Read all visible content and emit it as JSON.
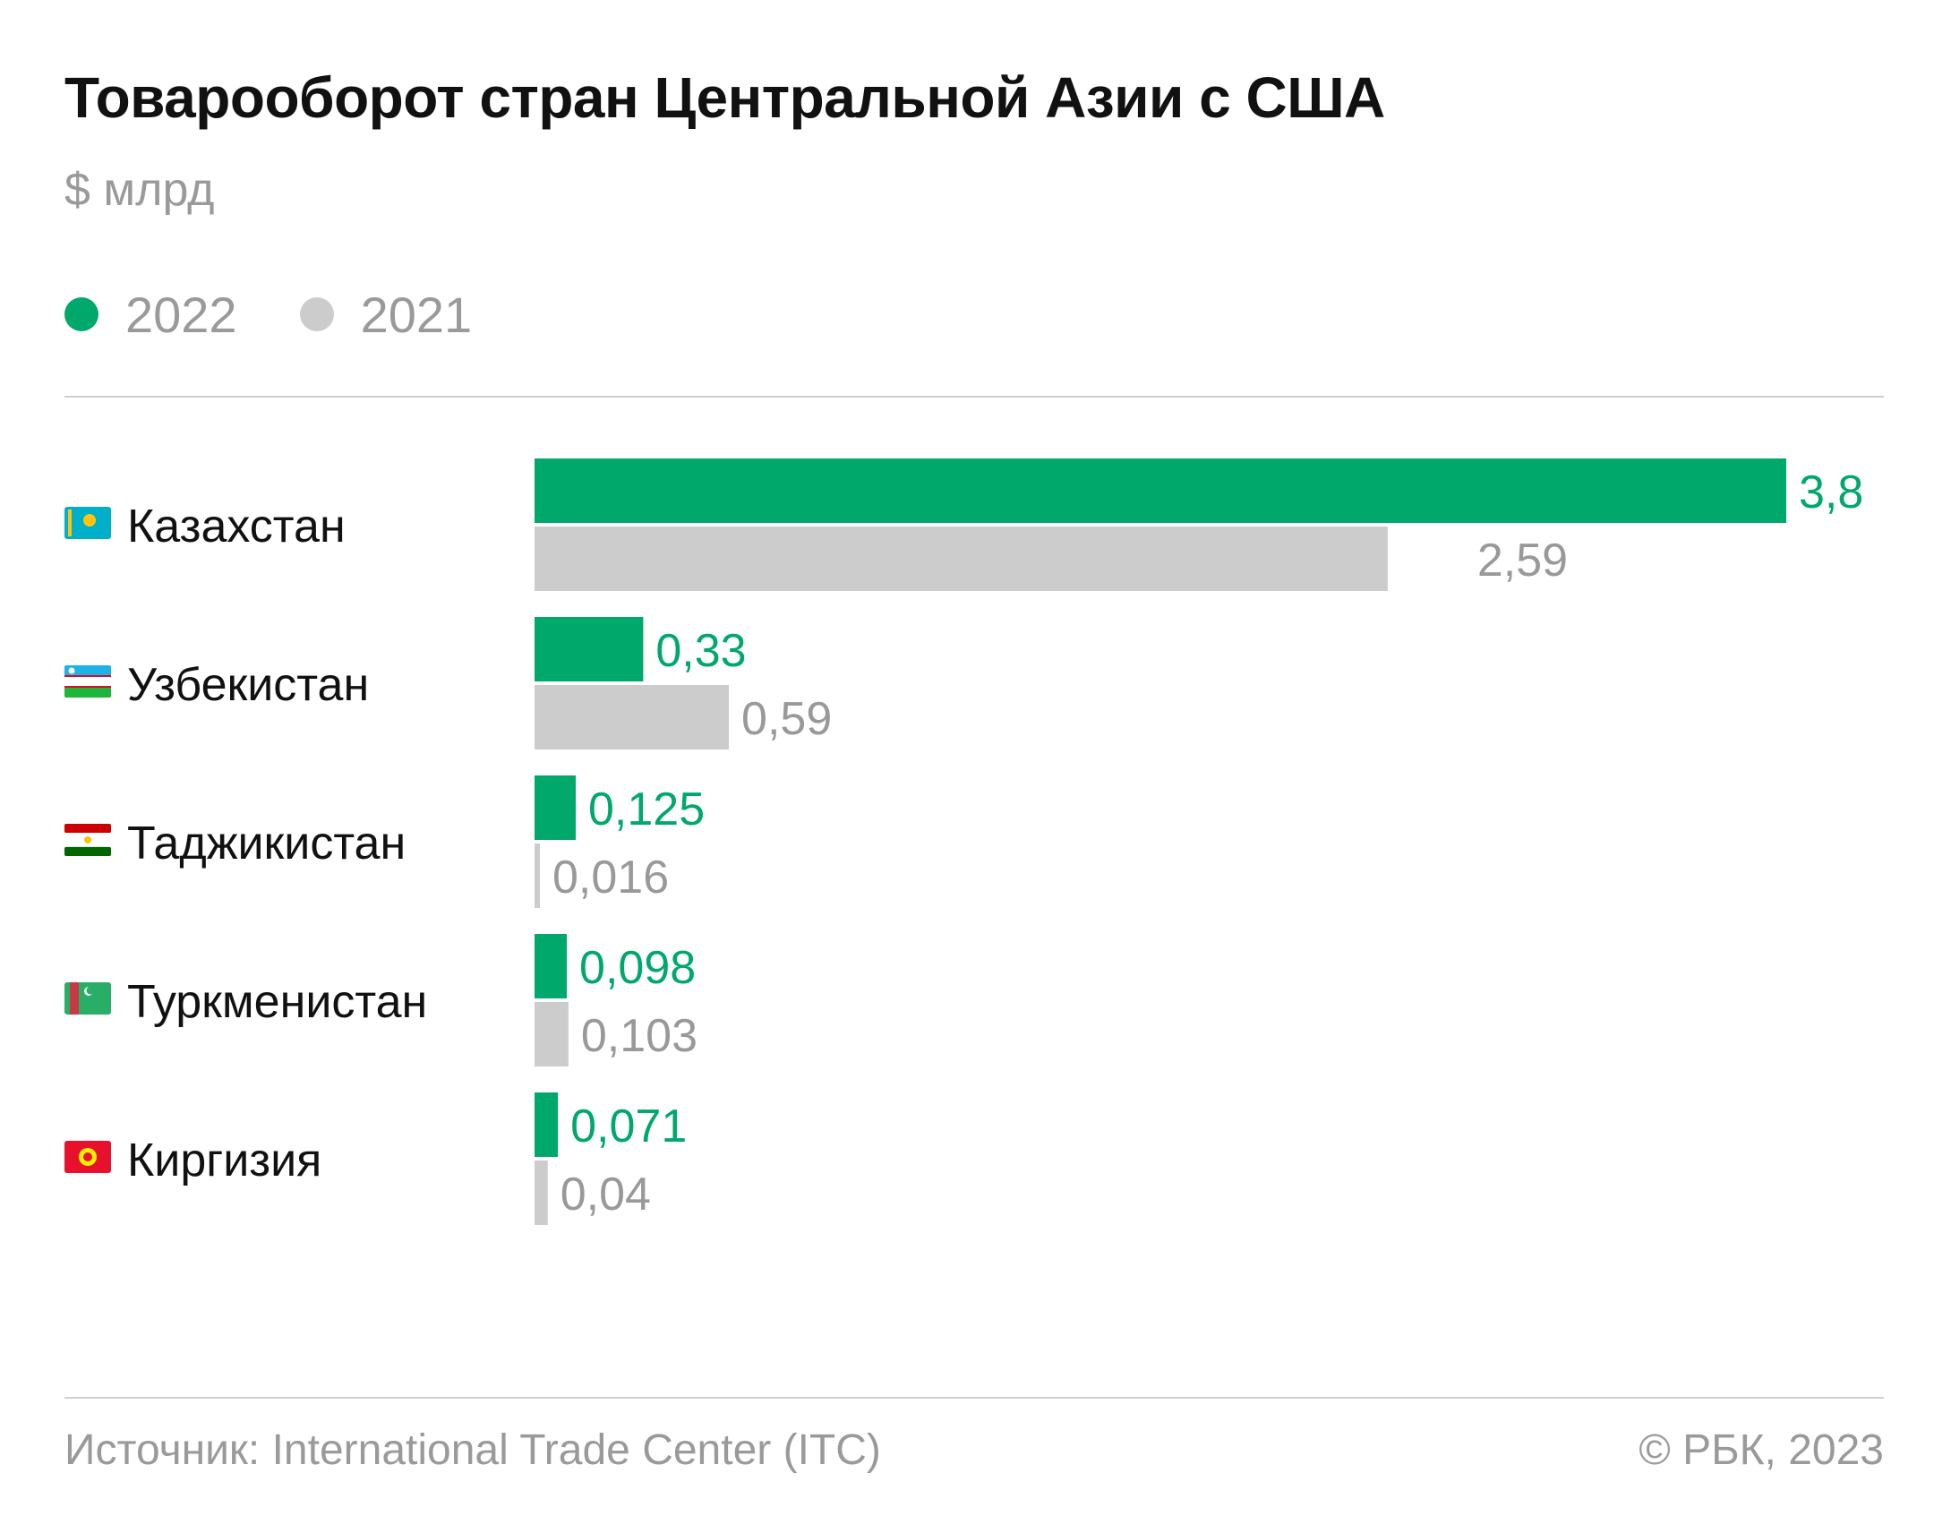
{
  "title": "Товарооборот стран Центральной Азии с США",
  "subtitle": "$ млрд",
  "legend": [
    {
      "label": "2022",
      "color": "#00a86b"
    },
    {
      "label": "2021",
      "color": "#cccccc"
    }
  ],
  "chart_data": {
    "type": "bar",
    "orientation": "horizontal",
    "categories": [
      {
        "label": "Казахстан",
        "flag": "kazakhstan-flag-icon"
      },
      {
        "label": "Узбекистан",
        "flag": "uzbekistan-flag-icon"
      },
      {
        "label": "Таджикистан",
        "flag": "tajikistan-flag-icon"
      },
      {
        "label": "Туркменистан",
        "flag": "turkmenistan-flag-icon"
      },
      {
        "label": "Киргизия",
        "flag": "kyrgyzstan-flag-icon"
      }
    ],
    "series": [
      {
        "name": "2022",
        "color": "#00a86b",
        "label_color": "#00a86b",
        "values": [
          3.8,
          0.33,
          0.125,
          0.098,
          0.071
        ],
        "labels": [
          "3,8",
          "0,33",
          "0,125",
          "0,098",
          "0,071"
        ]
      },
      {
        "name": "2021",
        "color": "#cccccc",
        "label_color": "#999999",
        "values": [
          2.59,
          0.59,
          0.016,
          0.103,
          0.04
        ],
        "labels": [
          "2,59",
          "0,59",
          "0,016",
          "0,103",
          "0,04"
        ]
      }
    ],
    "xlim": [
      0,
      3.8
    ],
    "grid": false,
    "legend_position": "top-left"
  },
  "footer": {
    "source": "Источник: International Trade Center (ITC)",
    "copyright": "© РБК, 2023"
  }
}
